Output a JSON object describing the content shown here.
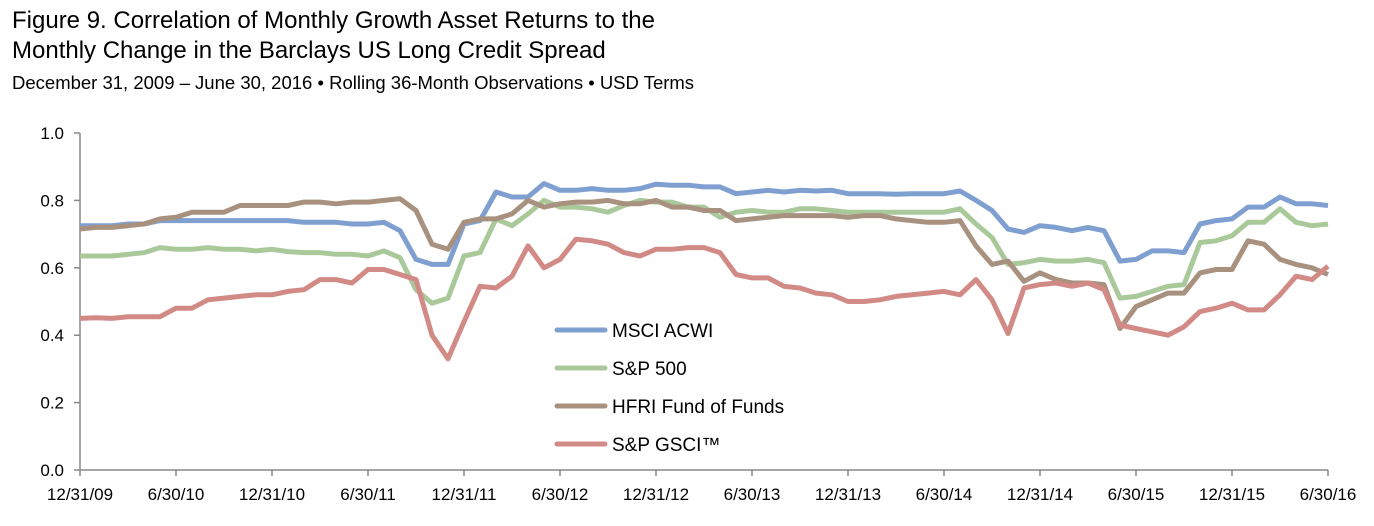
{
  "chart_data": {
    "type": "line",
    "title": "Figure 9. Correlation of Monthly Growth Asset Returns to the Monthly Change in the Barclays US Long Credit Spread",
    "title_lines": [
      "Figure 9. Correlation of Monthly Growth Asset Returns to the",
      "Monthly Change in the Barclays US Long Credit Spread"
    ],
    "subtitle": "December 31, 2009 – June 30, 2016 • Rolling 36-Month Observations • USD Terms",
    "xlabel": "",
    "ylabel": "",
    "x_start": "12/31/09",
    "x_end": "6/30/16",
    "x_frequency": "monthly",
    "x_ticks": [
      "12/31/09",
      "6/30/10",
      "12/31/10",
      "6/30/11",
      "12/31/11",
      "6/30/12",
      "12/31/12",
      "6/30/13",
      "12/31/13",
      "6/30/14",
      "12/31/14",
      "6/30/15",
      "12/31/15",
      "6/30/16"
    ],
    "y_ticks": [
      "0.0",
      "0.2",
      "0.4",
      "0.6",
      "0.8",
      "1.0"
    ],
    "ylim": [
      0,
      1.0
    ],
    "grid": false,
    "legend_placement": "center",
    "series": [
      {
        "name": "MSCI ACWI",
        "color": "#7f9fd0",
        "values": [
          0.725,
          0.725,
          0.725,
          0.73,
          0.73,
          0.74,
          0.74,
          0.74,
          0.74,
          0.74,
          0.74,
          0.74,
          0.74,
          0.74,
          0.735,
          0.735,
          0.735,
          0.73,
          0.73,
          0.735,
          0.71,
          0.625,
          0.61,
          0.61,
          0.73,
          0.74,
          0.825,
          0.81,
          0.81,
          0.85,
          0.83,
          0.83,
          0.835,
          0.83,
          0.83,
          0.835,
          0.848,
          0.845,
          0.845,
          0.84,
          0.84,
          0.82,
          0.825,
          0.83,
          0.825,
          0.83,
          0.828,
          0.83,
          0.82,
          0.82,
          0.82,
          0.818,
          0.82,
          0.82,
          0.82,
          0.828,
          0.8,
          0.77,
          0.715,
          0.705,
          0.725,
          0.72,
          0.71,
          0.72,
          0.71,
          0.62,
          0.625,
          0.65,
          0.65,
          0.645,
          0.73,
          0.74,
          0.745,
          0.78,
          0.78,
          0.81,
          0.79,
          0.79,
          0.785
        ]
      },
      {
        "name": "S&P 500",
        "color": "#aac99b",
        "values": [
          0.635,
          0.635,
          0.635,
          0.64,
          0.645,
          0.66,
          0.655,
          0.655,
          0.66,
          0.655,
          0.655,
          0.65,
          0.655,
          0.648,
          0.645,
          0.645,
          0.64,
          0.64,
          0.635,
          0.65,
          0.63,
          0.535,
          0.495,
          0.51,
          0.635,
          0.645,
          0.745,
          0.725,
          0.76,
          0.8,
          0.78,
          0.78,
          0.775,
          0.765,
          0.785,
          0.8,
          0.795,
          0.795,
          0.78,
          0.78,
          0.75,
          0.765,
          0.77,
          0.765,
          0.765,
          0.775,
          0.775,
          0.77,
          0.765,
          0.765,
          0.765,
          0.765,
          0.765,
          0.765,
          0.765,
          0.775,
          0.73,
          0.69,
          0.61,
          0.615,
          0.625,
          0.62,
          0.62,
          0.625,
          0.615,
          0.51,
          0.515,
          0.53,
          0.545,
          0.55,
          0.675,
          0.68,
          0.695,
          0.735,
          0.735,
          0.775,
          0.735,
          0.725,
          0.73
        ]
      },
      {
        "name": "HFRI Fund of Funds",
        "color": "#a8927f",
        "values": [
          0.715,
          0.72,
          0.72,
          0.725,
          0.73,
          0.745,
          0.75,
          0.765,
          0.765,
          0.765,
          0.785,
          0.785,
          0.785,
          0.785,
          0.795,
          0.795,
          0.79,
          0.795,
          0.795,
          0.8,
          0.805,
          0.77,
          0.67,
          0.655,
          0.735,
          0.745,
          0.745,
          0.76,
          0.8,
          0.78,
          0.79,
          0.795,
          0.795,
          0.8,
          0.79,
          0.79,
          0.8,
          0.78,
          0.78,
          0.77,
          0.77,
          0.74,
          0.745,
          0.75,
          0.755,
          0.755,
          0.755,
          0.755,
          0.75,
          0.755,
          0.755,
          0.745,
          0.74,
          0.735,
          0.735,
          0.74,
          0.665,
          0.61,
          0.62,
          0.56,
          0.585,
          0.565,
          0.555,
          0.555,
          0.55,
          0.42,
          0.485,
          0.505,
          0.525,
          0.525,
          0.585,
          0.595,
          0.595,
          0.68,
          0.67,
          0.625,
          0.61,
          0.6,
          0.58
        ]
      },
      {
        "name": "S&P GSCI™",
        "color": "#d18a86",
        "values": [
          0.45,
          0.452,
          0.45,
          0.455,
          0.455,
          0.455,
          0.48,
          0.48,
          0.505,
          0.51,
          0.515,
          0.52,
          0.52,
          0.53,
          0.535,
          0.565,
          0.565,
          0.555,
          0.595,
          0.595,
          0.58,
          0.565,
          0.4,
          0.33,
          0.44,
          0.545,
          0.54,
          0.575,
          0.665,
          0.6,
          0.625,
          0.685,
          0.68,
          0.67,
          0.645,
          0.635,
          0.655,
          0.655,
          0.66,
          0.66,
          0.645,
          0.58,
          0.57,
          0.57,
          0.545,
          0.54,
          0.525,
          0.52,
          0.5,
          0.5,
          0.505,
          0.515,
          0.52,
          0.525,
          0.53,
          0.52,
          0.565,
          0.505,
          0.405,
          0.54,
          0.55,
          0.555,
          0.545,
          0.555,
          0.535,
          0.43,
          0.42,
          0.41,
          0.4,
          0.425,
          0.47,
          0.48,
          0.495,
          0.475,
          0.475,
          0.52,
          0.575,
          0.565,
          0.605
        ]
      }
    ]
  }
}
